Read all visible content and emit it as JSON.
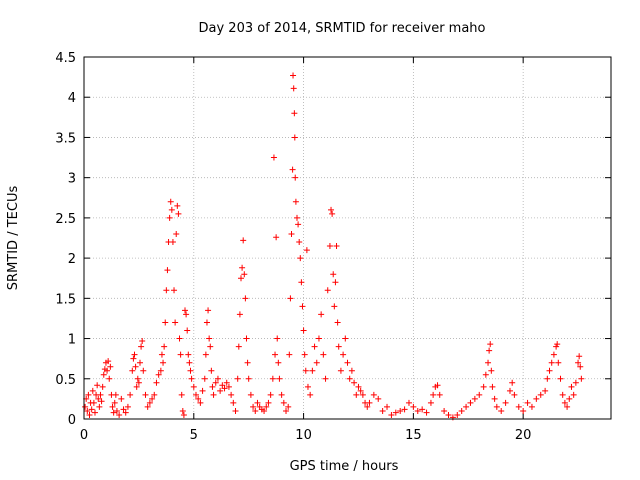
{
  "chart_data": {
    "type": "scatter",
    "title": "Day 203 of 2014, SRMTID for receiver maho",
    "xlabel": "GPS time / hours",
    "ylabel": "SRMTID / TECUs",
    "xlim": [
      0,
      24
    ],
    "ylim": [
      0,
      4.5
    ],
    "xticks": [
      0,
      5,
      10,
      15,
      20
    ],
    "xtick_labels": [
      "0",
      "5",
      "10",
      "15",
      "20"
    ],
    "yticks": [
      0,
      0.5,
      1,
      1.5,
      2,
      2.5,
      3,
      3.5,
      4,
      4.5
    ],
    "ytick_labels": [
      "0",
      "0.5",
      "1",
      "1.5",
      "2",
      "2.5",
      "3",
      "3.5",
      "4",
      "4.5"
    ],
    "grid": true,
    "marker": "+",
    "series": [
      {
        "name": "SRMTID",
        "color": "#ff0000",
        "points": [
          [
            0.05,
            0.15
          ],
          [
            0.1,
            0.25
          ],
          [
            0.15,
            0.1
          ],
          [
            0.2,
            0.3
          ],
          [
            0.25,
            0.05
          ],
          [
            0.3,
            0.2
          ],
          [
            0.35,
            0.12
          ],
          [
            0.4,
            0.35
          ],
          [
            0.45,
            0.2
          ],
          [
            0.5,
            0.08
          ],
          [
            0.55,
            0.3
          ],
          [
            0.6,
            0.42
          ],
          [
            0.65,
            0.25
          ],
          [
            0.7,
            0.15
          ],
          [
            0.75,
            0.3
          ],
          [
            0.8,
            0.22
          ],
          [
            0.85,
            0.4
          ],
          [
            0.9,
            0.55
          ],
          [
            0.95,
            0.62
          ],
          [
            1.0,
            0.7
          ],
          [
            1.05,
            0.6
          ],
          [
            1.1,
            0.72
          ],
          [
            1.15,
            0.5
          ],
          [
            1.2,
            0.65
          ],
          [
            1.25,
            0.3
          ],
          [
            1.3,
            0.15
          ],
          [
            1.35,
            0.08
          ],
          [
            1.4,
            0.2
          ],
          [
            1.45,
            0.3
          ],
          [
            1.5,
            0.1
          ],
          [
            1.6,
            0.05
          ],
          [
            1.7,
            0.25
          ],
          [
            1.8,
            0.12
          ],
          [
            1.9,
            0.08
          ],
          [
            2.0,
            0.15
          ],
          [
            2.1,
            0.3
          ],
          [
            2.2,
            0.6
          ],
          [
            2.25,
            0.75
          ],
          [
            2.3,
            0.8
          ],
          [
            2.35,
            0.65
          ],
          [
            2.4,
            0.4
          ],
          [
            2.45,
            0.5
          ],
          [
            2.5,
            0.45
          ],
          [
            2.55,
            0.7
          ],
          [
            2.6,
            0.9
          ],
          [
            2.65,
            0.97
          ],
          [
            2.7,
            0.6
          ],
          [
            2.8,
            0.3
          ],
          [
            2.9,
            0.15
          ],
          [
            3.0,
            0.2
          ],
          [
            3.1,
            0.25
          ],
          [
            3.2,
            0.3
          ],
          [
            3.3,
            0.45
          ],
          [
            3.4,
            0.55
          ],
          [
            3.5,
            0.6
          ],
          [
            3.55,
            0.8
          ],
          [
            3.6,
            0.7
          ],
          [
            3.65,
            0.9
          ],
          [
            3.7,
            1.2
          ],
          [
            3.75,
            1.6
          ],
          [
            3.8,
            1.85
          ],
          [
            3.85,
            2.2
          ],
          [
            3.9,
            2.5
          ],
          [
            3.95,
            2.7
          ],
          [
            4.0,
            2.6
          ],
          [
            4.05,
            2.2
          ],
          [
            4.1,
            1.6
          ],
          [
            4.15,
            1.2
          ],
          [
            4.2,
            2.3
          ],
          [
            4.25,
            2.65
          ],
          [
            4.3,
            2.55
          ],
          [
            4.35,
            1.0
          ],
          [
            4.4,
            0.8
          ],
          [
            4.45,
            0.3
          ],
          [
            4.5,
            0.1
          ],
          [
            4.55,
            0.05
          ],
          [
            4.6,
            1.35
          ],
          [
            4.65,
            1.3
          ],
          [
            4.7,
            1.1
          ],
          [
            4.75,
            0.8
          ],
          [
            4.8,
            0.7
          ],
          [
            4.85,
            0.6
          ],
          [
            4.9,
            0.5
          ],
          [
            5.0,
            0.4
          ],
          [
            5.1,
            0.3
          ],
          [
            5.2,
            0.25
          ],
          [
            5.3,
            0.2
          ],
          [
            5.4,
            0.35
          ],
          [
            5.5,
            0.5
          ],
          [
            5.55,
            0.8
          ],
          [
            5.6,
            1.2
          ],
          [
            5.65,
            1.35
          ],
          [
            5.7,
            1.0
          ],
          [
            5.75,
            0.9
          ],
          [
            5.8,
            0.6
          ],
          [
            5.85,
            0.4
          ],
          [
            5.9,
            0.3
          ],
          [
            6.0,
            0.45
          ],
          [
            6.1,
            0.5
          ],
          [
            6.2,
            0.35
          ],
          [
            6.3,
            0.42
          ],
          [
            6.4,
            0.38
          ],
          [
            6.5,
            0.45
          ],
          [
            6.6,
            0.4
          ],
          [
            6.7,
            0.3
          ],
          [
            6.8,
            0.2
          ],
          [
            6.9,
            0.1
          ],
          [
            7.0,
            0.5
          ],
          [
            7.05,
            0.9
          ],
          [
            7.1,
            1.3
          ],
          [
            7.15,
            1.75
          ],
          [
            7.2,
            1.88
          ],
          [
            7.25,
            2.22
          ],
          [
            7.3,
            1.8
          ],
          [
            7.35,
            1.5
          ],
          [
            7.4,
            1.0
          ],
          [
            7.45,
            0.7
          ],
          [
            7.5,
            0.5
          ],
          [
            7.6,
            0.3
          ],
          [
            7.7,
            0.15
          ],
          [
            7.8,
            0.1
          ],
          [
            7.9,
            0.2
          ],
          [
            8.0,
            0.15
          ],
          [
            8.1,
            0.12
          ],
          [
            8.2,
            0.1
          ],
          [
            8.3,
            0.15
          ],
          [
            8.4,
            0.2
          ],
          [
            8.5,
            0.3
          ],
          [
            8.6,
            0.5
          ],
          [
            8.65,
            3.25
          ],
          [
            8.7,
            0.8
          ],
          [
            8.75,
            2.26
          ],
          [
            8.8,
            1.0
          ],
          [
            8.85,
            0.7
          ],
          [
            8.9,
            0.5
          ],
          [
            9.0,
            0.3
          ],
          [
            9.1,
            0.2
          ],
          [
            9.2,
            0.1
          ],
          [
            9.3,
            0.15
          ],
          [
            9.35,
            0.8
          ],
          [
            9.4,
            1.5
          ],
          [
            9.45,
            2.3
          ],
          [
            9.5,
            3.1
          ],
          [
            9.52,
            4.27
          ],
          [
            9.55,
            4.11
          ],
          [
            9.58,
            3.8
          ],
          [
            9.6,
            3.5
          ],
          [
            9.62,
            3.0
          ],
          [
            9.65,
            2.7
          ],
          [
            9.7,
            2.5
          ],
          [
            9.75,
            2.42
          ],
          [
            9.8,
            2.2
          ],
          [
            9.85,
            2.0
          ],
          [
            9.9,
            1.7
          ],
          [
            9.95,
            1.4
          ],
          [
            10.0,
            1.1
          ],
          [
            10.05,
            0.8
          ],
          [
            10.1,
            0.6
          ],
          [
            10.15,
            2.1
          ],
          [
            10.2,
            0.4
          ],
          [
            10.3,
            0.3
          ],
          [
            10.4,
            0.6
          ],
          [
            10.5,
            0.9
          ],
          [
            10.6,
            0.7
          ],
          [
            10.7,
            1.0
          ],
          [
            10.8,
            1.3
          ],
          [
            10.9,
            0.8
          ],
          [
            11.0,
            0.5
          ],
          [
            11.1,
            1.6
          ],
          [
            11.2,
            2.15
          ],
          [
            11.25,
            2.6
          ],
          [
            11.3,
            2.55
          ],
          [
            11.35,
            1.8
          ],
          [
            11.4,
            1.4
          ],
          [
            11.45,
            1.7
          ],
          [
            11.5,
            2.15
          ],
          [
            11.55,
            1.2
          ],
          [
            11.6,
            0.9
          ],
          [
            11.7,
            0.6
          ],
          [
            11.8,
            0.8
          ],
          [
            11.9,
            1.0
          ],
          [
            12.0,
            0.7
          ],
          [
            12.1,
            0.5
          ],
          [
            12.2,
            0.6
          ],
          [
            12.3,
            0.45
          ],
          [
            12.4,
            0.3
          ],
          [
            12.5,
            0.4
          ],
          [
            12.6,
            0.35
          ],
          [
            12.7,
            0.3
          ],
          [
            12.8,
            0.2
          ],
          [
            12.9,
            0.15
          ],
          [
            13.0,
            0.2
          ],
          [
            13.2,
            0.3
          ],
          [
            13.4,
            0.25
          ],
          [
            13.6,
            0.1
          ],
          [
            13.8,
            0.15
          ],
          [
            14.0,
            0.05
          ],
          [
            14.2,
            0.08
          ],
          [
            14.4,
            0.1
          ],
          [
            14.6,
            0.12
          ],
          [
            14.8,
            0.2
          ],
          [
            15.0,
            0.15
          ],
          [
            15.2,
            0.1
          ],
          [
            15.4,
            0.12
          ],
          [
            15.6,
            0.08
          ],
          [
            15.8,
            0.2
          ],
          [
            15.9,
            0.3
          ],
          [
            16.0,
            0.4
          ],
          [
            16.1,
            0.42
          ],
          [
            16.2,
            0.3
          ],
          [
            16.4,
            0.1
          ],
          [
            16.6,
            0.05
          ],
          [
            16.8,
            0.02
          ],
          [
            17.0,
            0.05
          ],
          [
            17.2,
            0.1
          ],
          [
            17.4,
            0.15
          ],
          [
            17.6,
            0.2
          ],
          [
            17.8,
            0.25
          ],
          [
            18.0,
            0.3
          ],
          [
            18.2,
            0.4
          ],
          [
            18.3,
            0.55
          ],
          [
            18.4,
            0.7
          ],
          [
            18.45,
            0.85
          ],
          [
            18.5,
            0.93
          ],
          [
            18.55,
            0.6
          ],
          [
            18.6,
            0.4
          ],
          [
            18.7,
            0.25
          ],
          [
            18.8,
            0.15
          ],
          [
            19.0,
            0.1
          ],
          [
            19.2,
            0.2
          ],
          [
            19.4,
            0.35
          ],
          [
            19.5,
            0.45
          ],
          [
            19.6,
            0.3
          ],
          [
            19.8,
            0.15
          ],
          [
            20.0,
            0.1
          ],
          [
            20.2,
            0.2
          ],
          [
            20.4,
            0.15
          ],
          [
            20.6,
            0.25
          ],
          [
            20.8,
            0.3
          ],
          [
            21.0,
            0.35
          ],
          [
            21.1,
            0.5
          ],
          [
            21.2,
            0.6
          ],
          [
            21.3,
            0.7
          ],
          [
            21.4,
            0.8
          ],
          [
            21.5,
            0.9
          ],
          [
            21.55,
            0.93
          ],
          [
            21.6,
            0.7
          ],
          [
            21.7,
            0.5
          ],
          [
            21.8,
            0.3
          ],
          [
            21.9,
            0.2
          ],
          [
            22.0,
            0.15
          ],
          [
            22.1,
            0.25
          ],
          [
            22.2,
            0.4
          ],
          [
            22.3,
            0.3
          ],
          [
            22.4,
            0.45
          ],
          [
            22.5,
            0.7
          ],
          [
            22.55,
            0.78
          ],
          [
            22.6,
            0.65
          ],
          [
            22.65,
            0.5
          ]
        ]
      }
    ]
  }
}
